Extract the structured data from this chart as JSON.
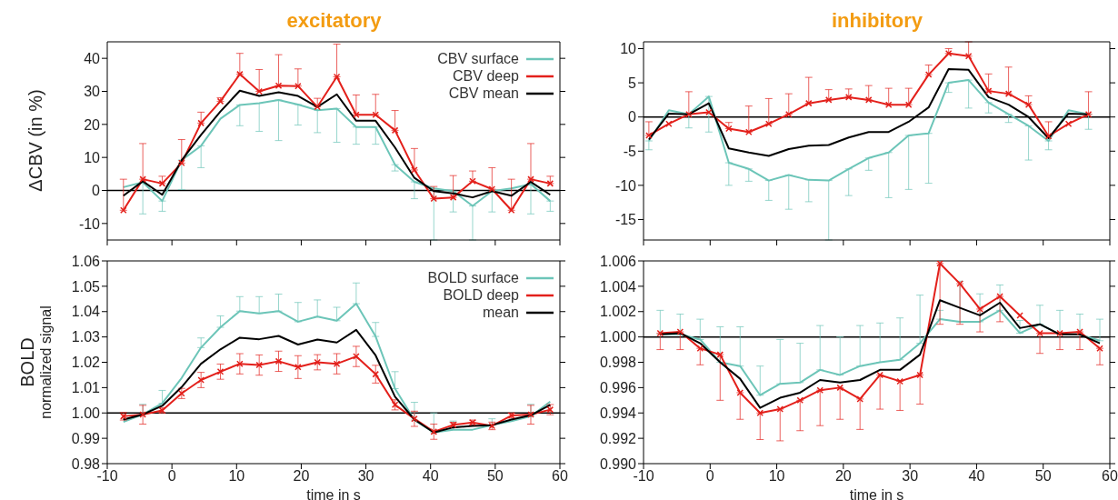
{
  "chart_data": [
    {
      "type": "line",
      "title": "excitatory",
      "ylabel": "ΔCBV (in %)",
      "x": [
        -7.5,
        -4.5,
        -1.5,
        1.5,
        4.5,
        7.5,
        10.5,
        13.5,
        16.5,
        19.5,
        22.5,
        25.5,
        28.5,
        31.5,
        34.5,
        37.5,
        40.5,
        43.5,
        46.5,
        49.5,
        52.5,
        55.5,
        58.5
      ],
      "xlim": [
        -10,
        60
      ],
      "xticks": [
        -10,
        0,
        10,
        20,
        30,
        40,
        50,
        60
      ],
      "ylim": [
        -15,
        45
      ],
      "yticks": [
        -10,
        0,
        10,
        20,
        30,
        40
      ],
      "tick_labels": "y",
      "legend": "top right",
      "ref_lines": [
        {
          "axis": "y",
          "value": 0
        }
      ],
      "series": [
        {
          "name": "CBV surface",
          "color": "#6cc5b8",
          "values": [
            1,
            2.5,
            -3.2,
            9.2,
            13.5,
            21.7,
            25.9,
            26.4,
            27.4,
            26,
            24.3,
            24.8,
            19.2,
            19.2,
            7.8,
            2.6,
            0.6,
            -0.2,
            -4.7,
            -0.2,
            0.6,
            1.9,
            -3.2
          ],
          "errors": [
            null,
            [
              -7.1,
              2.5
            ],
            [
              -6.3,
              -3.2
            ],
            [
              0.3,
              9.2
            ],
            [
              6.9,
              13.5
            ],
            null,
            [
              19.6,
              25.9
            ],
            [
              17.9,
              26.4
            ],
            [
              15.1,
              27.4
            ],
            [
              19.8,
              26
            ],
            [
              17.5,
              24.3
            ],
            [
              14.6,
              24.8
            ],
            [
              14,
              19.2
            ],
            [
              14,
              19.2
            ],
            [
              5.9,
              7.8
            ],
            [
              -2.5,
              2.6
            ],
            [
              -15,
              0.6
            ],
            [
              -6.5,
              -0.2
            ],
            [
              -15,
              -4.7
            ],
            [
              -6.5,
              -0.2
            ],
            null,
            [
              -7.1,
              1.9
            ],
            [
              -6.3,
              -3.2
            ]
          ]
        },
        {
          "name": "CBV deep",
          "color": "#e3201b",
          "marker": "cross",
          "values": [
            -6,
            3.4,
            2.1,
            8.3,
            20.4,
            27,
            35.2,
            30,
            31.7,
            31.6,
            25.3,
            34.4,
            22.9,
            22.9,
            18.2,
            6.2,
            -2.5,
            -2.1,
            2.8,
            0.4,
            -6,
            3.4,
            2.1
          ],
          "errors": [
            [
              -6,
              3.4
            ],
            [
              3.4,
              14.2
            ],
            [
              2.1,
              4.3
            ],
            [
              8.3,
              15.4
            ],
            [
              20.4,
              23.7
            ],
            [
              27,
              28.1
            ],
            [
              35.2,
              41.5
            ],
            [
              30,
              36.6
            ],
            [
              31.7,
              41.1
            ],
            [
              31.6,
              36.8
            ],
            [
              25.3,
              27.9
            ],
            [
              34.4,
              44.3
            ],
            [
              22.9,
              28.9
            ],
            [
              22.9,
              29.1
            ],
            [
              18.2,
              24.2
            ],
            [
              6.2,
              12.7
            ],
            [
              -2.5,
              1.2
            ],
            [
              -2.1,
              4.5
            ],
            [
              2.8,
              5.9
            ],
            [
              0.4,
              6.9
            ],
            [
              -6,
              3.4
            ],
            [
              3.4,
              14.2
            ],
            [
              2.1,
              4.3
            ]
          ]
        },
        {
          "name": "CBV mean",
          "color": "#000000",
          "values": [
            -1.6,
            2.8,
            -1.3,
            9.1,
            16.8,
            23.9,
            30.2,
            28.6,
            29.7,
            28.6,
            25.3,
            29.1,
            21.1,
            21.1,
            13,
            3.8,
            -0.2,
            -0.9,
            -2.1,
            -0.2,
            -1.6,
            2.6,
            -1.3
          ]
        }
      ]
    },
    {
      "type": "line",
      "title": "inhibitory",
      "x": [
        -9.2,
        -6.2,
        -3.2,
        -0.2,
        2.8,
        5.8,
        8.8,
        11.8,
        14.8,
        17.8,
        20.8,
        23.8,
        26.8,
        29.8,
        32.8,
        35.8,
        38.8,
        41.8,
        44.8,
        47.8,
        50.8,
        53.8,
        56.8
      ],
      "xlim": [
        -10,
        60
      ],
      "xticks": [
        -10,
        0,
        10,
        20,
        30,
        40,
        50,
        60
      ],
      "ylim": [
        -18,
        11
      ],
      "yticks": [
        -15,
        -10,
        -5,
        0,
        5,
        10
      ],
      "tick_labels": "y",
      "ref_lines": [
        {
          "axis": "y",
          "value": 0
        }
      ],
      "series": [
        {
          "color": "#6cc5b8",
          "values": [
            -3.5,
            1,
            0.4,
            3,
            -6.7,
            -7.6,
            -9.3,
            -8.5,
            -9.2,
            -9.3,
            -7.6,
            -6,
            -5.2,
            -2.7,
            -2.4,
            5,
            5.4,
            2.1,
            0.4,
            -1.3,
            -3.5,
            1,
            0.4
          ],
          "errors": [
            [
              -4.8,
              -3.5
            ],
            null,
            [
              -1.6,
              0.4
            ],
            [
              -2.2,
              3
            ],
            [
              -10,
              -6.7
            ],
            [
              -9.4,
              -7.6
            ],
            [
              -12.2,
              -9.3
            ],
            [
              -13.5,
              -8.5
            ],
            [
              -12.4,
              -9.2
            ],
            [
              -18,
              -9.3
            ],
            [
              -11.5,
              -7.6
            ],
            [
              -7.8,
              -6
            ],
            [
              -11.8,
              -5.2
            ],
            [
              -10.6,
              -2.7
            ],
            [
              -9.7,
              -2.4
            ],
            [
              3.6,
              5
            ],
            [
              1.3,
              5.4
            ],
            [
              0.6,
              2.1
            ],
            [
              -0.8,
              0.4
            ],
            [
              -6.3,
              -1.3
            ],
            [
              -4.8,
              -3.5
            ],
            null,
            [
              -1.8,
              0.4
            ]
          ]
        },
        {
          "color": "#e3201b",
          "marker": "cross",
          "values": [
            -2.7,
            -1,
            0.4,
            0.7,
            -1.7,
            -2.2,
            -1,
            0.4,
            2,
            2.5,
            2.9,
            2.5,
            1.8,
            1.8,
            6.2,
            9.3,
            8.9,
            3.8,
            3.4,
            1.8,
            -2.8,
            -1,
            0.4
          ],
          "errors": [
            [
              -2.7,
              -0.7
            ],
            null,
            [
              0.4,
              3.7
            ],
            null,
            [
              -1.7,
              -0.8
            ],
            [
              -2.2,
              1.6
            ],
            [
              -1,
              2.7
            ],
            [
              0.4,
              3.4
            ],
            [
              2,
              5.8
            ],
            [
              2.5,
              4
            ],
            [
              2.9,
              4.1
            ],
            [
              2.5,
              4.6
            ],
            [
              1.8,
              4.2
            ],
            [
              1.8,
              4.2
            ],
            [
              6.2,
              7.6
            ],
            [
              9.3,
              10
            ],
            [
              8.9,
              11
            ],
            [
              3.8,
              6.3
            ],
            [
              3.4,
              7.3
            ],
            [
              1.8,
              3.1
            ],
            [
              -2.8,
              -0.7
            ],
            null,
            [
              0.4,
              3.7
            ]
          ]
        },
        {
          "color": "#000000",
          "values": [
            -3.3,
            0.5,
            0.4,
            2,
            -4.6,
            -5.2,
            -5.7,
            -4.7,
            -4.2,
            -4.1,
            -3,
            -2.2,
            -2.2,
            -0.7,
            1.4,
            7,
            6.9,
            2.9,
            1.8,
            0,
            -3.1,
            0.5,
            0.4
          ]
        }
      ]
    },
    {
      "type": "line",
      "ylabel": "BOLD\nnormalized signal",
      "xlabel": "time in s",
      "x": [
        -7.5,
        -4.5,
        -1.5,
        1.5,
        4.5,
        7.5,
        10.5,
        13.5,
        16.5,
        19.5,
        22.5,
        25.5,
        28.5,
        31.5,
        34.5,
        37.5,
        40.5,
        43.5,
        46.5,
        49.5,
        52.5,
        55.5,
        58.5
      ],
      "xlim": [
        -10,
        60
      ],
      "xticks": [
        -10,
        0,
        10,
        20,
        30,
        40,
        50,
        60
      ],
      "ylim": [
        0.98,
        1.06
      ],
      "yticks": [
        {
          "value": 0.98,
          "label": "0.98"
        },
        {
          "value": 0.99,
          "label": "0.99"
        },
        {
          "value": 1,
          "label": "1.00"
        },
        {
          "value": 1.01,
          "label": "1.01"
        },
        {
          "value": 1.02,
          "label": "1.02"
        },
        {
          "value": 1.03,
          "label": "1.03"
        },
        {
          "value": 1.04,
          "label": "1.04"
        },
        {
          "value": 1.05,
          "label": "1.05"
        },
        {
          "value": 1.06,
          "label": "1.06"
        }
      ],
      "legend": "top right",
      "ref_lines": [
        {
          "axis": "y",
          "value": 1
        }
      ],
      "series": [
        {
          "name": "BOLD surface",
          "color": "#6cc5b8",
          "values": [
            0.9965,
            0.9994,
            1.0038,
            1.0138,
            1.0258,
            1.0338,
            1.0402,
            1.0393,
            1.0402,
            1.036,
            1.038,
            1.0364,
            1.0431,
            1.0302,
            1.0096,
            0.9972,
            0.9923,
            0.9934,
            0.9934,
            0.9952,
            0.9968,
            0.9987,
            1.0045
          ],
          "errors": [
            null,
            [
              0.9994,
              1.0034
            ],
            [
              1.0038,
              1.0089
            ],
            null,
            [
              1.0258,
              1.0296
            ],
            [
              1.0338,
              1.0383
            ],
            [
              1.0402,
              1.0459
            ],
            [
              1.0393,
              1.0459
            ],
            [
              1.0402,
              1.0469
            ],
            [
              1.036,
              1.0436
            ],
            [
              1.038,
              1.0446
            ],
            [
              1.0364,
              1.0417
            ],
            [
              1.0431,
              1.0513
            ],
            [
              1.0302,
              1.0357
            ],
            [
              1.0096,
              1.0163
            ],
            [
              0.9972,
              1.0042
            ],
            [
              0.9923,
              1
            ],
            [
              0.9934,
              0.9968
            ],
            null,
            [
              0.9952,
              0.9977
            ],
            null,
            [
              0.9987,
              1.0034
            ],
            null
          ]
        },
        {
          "name": "BOLD deep",
          "color": "#e3201b",
          "marker": "cross",
          "values": [
            0.9987,
            0.9994,
            1.001,
            1.0077,
            1.013,
            1.0163,
            1.0194,
            1.0189,
            1.0204,
            1.0181,
            1.02,
            1.0194,
            1.0223,
            1.0153,
            1.0032,
            0.9977,
            0.9926,
            0.9953,
            0.9962,
            0.9949,
            0.999,
            0.9994,
            1.0013
          ],
          "errors": [
            [
              0.9972,
              1.0002
            ],
            [
              0.9956,
              1.003
            ],
            [
              1,
              1.002
            ],
            [
              1.0057,
              1.0097
            ],
            [
              1.01,
              1.016
            ],
            [
              1.0133,
              1.0193
            ],
            [
              1.0154,
              1.0234
            ],
            [
              1.0149,
              1.0229
            ],
            [
              1.0164,
              1.0244
            ],
            [
              1.0136,
              1.0226
            ],
            [
              1.017,
              1.023
            ],
            [
              1.0154,
              1.0234
            ],
            [
              1.0183,
              1.0263
            ],
            [
              1.0118,
              1.0188
            ],
            [
              1.0012,
              1.0052
            ],
            [
              0.9947,
              1.0007
            ],
            [
              0.9896,
              0.9956
            ],
            [
              0.9943,
              0.9963
            ],
            [
              0.9952,
              0.9972
            ],
            [
              0.9934,
              0.9964
            ],
            [
              0.998,
              1
            ],
            [
              0.9956,
              1.003
            ],
            [
              0.9993,
              1.0033
            ]
          ]
        },
        {
          "name": "mean",
          "color": "#000000",
          "values": [
            0.9974,
            0.9994,
            1.0028,
            1.0102,
            1.0194,
            1.0251,
            1.0297,
            1.0291,
            1.0304,
            1.027,
            1.029,
            1.0278,
            1.0328,
            1.0227,
            1.0064,
            0.9974,
            0.9923,
            0.9943,
            0.9949,
            0.9952,
            0.9974,
            0.9991,
            1.0032
          ]
        }
      ]
    },
    {
      "type": "line",
      "xlabel": "time in s",
      "x": [
        -7.5,
        -4.5,
        -1.5,
        1.5,
        4.5,
        7.5,
        10.5,
        13.5,
        16.5,
        19.5,
        22.5,
        25.5,
        28.5,
        31.5,
        34.5,
        37.5,
        40.5,
        43.5,
        46.5,
        49.5,
        52.5,
        55.5,
        58.5
      ],
      "xlim": [
        -10,
        60
      ],
      "xticks": [
        -10,
        0,
        10,
        20,
        30,
        40,
        50,
        60
      ],
      "ylim": [
        0.99,
        1.006
      ],
      "yticks": [
        {
          "value": 0.99,
          "label": "0.990"
        },
        {
          "value": 0.992,
          "label": "0.992"
        },
        {
          "value": 0.994,
          "label": "0.994"
        },
        {
          "value": 0.996,
          "label": "0.996"
        },
        {
          "value": 0.998,
          "label": "0.998"
        },
        {
          "value": 1,
          "label": "1.000"
        },
        {
          "value": 1.002,
          "label": "1.002"
        },
        {
          "value": 1.004,
          "label": "1.004"
        },
        {
          "value": 1.006,
          "label": "1.006"
        }
      ],
      "ref_lines": [
        {
          "axis": "y",
          "value": 1
        }
      ],
      "series": [
        {
          "color": "#6cc5b8",
          "values": [
            1.0002,
            1.0002,
            0.9998,
            0.998,
            0.9977,
            0.9954,
            0.9963,
            0.9964,
            0.9974,
            0.997,
            0.9977,
            0.998,
            0.9982,
            0.9995,
            1.0014,
            1.0012,
            1.0012,
            1.0021,
            1.0003,
            1.001,
            1.0002,
            1.0002,
            0.9997
          ],
          "errors": [
            [
              1.0002,
              1.0021
            ],
            [
              1.0002,
              1.0018
            ],
            [
              0.9998,
              1.0014
            ],
            [
              0.998,
              1.0008
            ],
            [
              0.9977,
              1.0008
            ],
            [
              0.9954,
              0.9977
            ],
            [
              0.9963,
              0.9998
            ],
            [
              0.9964,
              0.9995
            ],
            [
              0.9974,
              1.0009
            ],
            [
              0.997,
              1
            ],
            [
              0.9977,
              1.0009
            ],
            [
              0.998,
              1.0011
            ],
            [
              0.9982,
              1.0015
            ],
            [
              0.9995,
              1.0033
            ],
            [
              1.0014,
              1.0021
            ],
            [
              1.0012,
              1.0044
            ],
            [
              1.0012,
              1.0034
            ],
            [
              1.0021,
              1.0041
            ],
            [
              1.0003,
              1.0013
            ],
            [
              1.001,
              1.0025
            ],
            [
              1.0002,
              1.0021
            ],
            [
              1.0002,
              1.0018
            ],
            [
              0.9997,
              1.0014
            ]
          ]
        },
        {
          "color": "#e3201b",
          "marker": "cross",
          "values": [
            1.0003,
            1.0004,
            0.9991,
            0.9986,
            0.9956,
            0.994,
            0.9943,
            0.995,
            0.9958,
            0.996,
            0.9951,
            0.997,
            0.9965,
            0.997,
            1.0058,
            1.0042,
            1.0022,
            1.0032,
            1.0017,
            1.0003,
            1.0003,
            1.0004,
            0.9991
          ],
          "errors": [
            [
              0.999,
              1.0003
            ],
            [
              0.999,
              1.0004
            ],
            [
              0.9978,
              0.9991
            ],
            [
              0.995,
              0.9986
            ],
            [
              0.9935,
              0.9956
            ],
            [
              0.9919,
              0.994
            ],
            [
              0.9918,
              0.9943
            ],
            [
              0.9926,
              0.995
            ],
            [
              0.993,
              0.9958
            ],
            [
              0.9935,
              0.996
            ],
            [
              0.9927,
              0.9951
            ],
            [
              0.9943,
              0.997
            ],
            [
              0.9942,
              0.9965
            ],
            [
              0.9947,
              0.997
            ],
            [
              1.001,
              1.0058
            ],
            [
              1.001,
              1.0042
            ],
            [
              1.0004,
              1.0022
            ],
            [
              1.0012,
              1.0032
            ],
            null,
            [
              0.9987,
              1.0003
            ],
            [
              0.999,
              1.0003
            ],
            [
              0.999,
              1.0004
            ],
            [
              0.9978,
              0.9991
            ]
          ]
        },
        {
          "color": "#000000",
          "values": [
            1.0002,
            1.0003,
            0.9995,
            0.998,
            0.9967,
            0.9944,
            0.9952,
            0.9956,
            0.9966,
            0.9964,
            0.9966,
            0.9974,
            0.9974,
            0.9986,
            1.0029,
            1.0023,
            1.0017,
            1.0027,
            1.0007,
            1.001,
            1.0002,
            1.0002,
            0.9995
          ]
        }
      ]
    }
  ]
}
